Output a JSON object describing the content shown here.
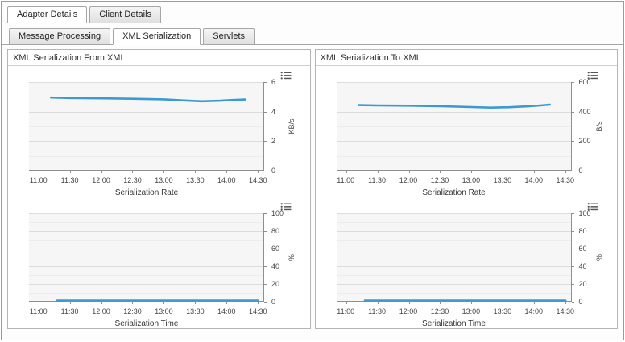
{
  "tabs_primary": [
    {
      "label": "Adapter Details",
      "active": true
    },
    {
      "label": "Client Details",
      "active": false
    }
  ],
  "tabs_secondary": [
    {
      "label": "Message Processing",
      "active": false
    },
    {
      "label": "XML Serialization",
      "active": true
    },
    {
      "label": "Servlets",
      "active": false
    }
  ],
  "panels": [
    {
      "title": "XML Serialization From XML"
    },
    {
      "title": "XML Serialization To XML"
    }
  ],
  "colors": {
    "line": "#3d9ad1",
    "grid_major": "#dcdcdc",
    "grid_minor": "#ececec",
    "axis": "#8f8f8f",
    "plot_bg": "#f6f6f6"
  },
  "chart_data": [
    {
      "type": "line",
      "panel": "XML Serialization From XML",
      "title": "Serialization Rate",
      "ylabel": "KB/s",
      "ylim": [
        0,
        6
      ],
      "yticks": [
        0,
        2,
        4,
        6
      ],
      "xlim": [
        10.85,
        14.6
      ],
      "xticks": [
        "11:00",
        "11:30",
        "12:00",
        "12:30",
        "13:00",
        "13:30",
        "14:00",
        "14:30"
      ],
      "x": [
        11.2,
        11.5,
        12.0,
        12.5,
        13.0,
        13.3,
        13.6,
        13.9,
        14.1,
        14.3
      ],
      "y": [
        4.95,
        4.92,
        4.9,
        4.87,
        4.83,
        4.76,
        4.7,
        4.74,
        4.79,
        4.82
      ]
    },
    {
      "type": "line",
      "panel": "XML Serialization From XML",
      "title": "Serialization Time",
      "ylabel": "%",
      "ylim": [
        0,
        100
      ],
      "yticks": [
        0,
        20,
        40,
        60,
        80,
        100
      ],
      "xlim": [
        10.85,
        14.6
      ],
      "xticks": [
        "11:00",
        "11:30",
        "12:00",
        "12:30",
        "13:00",
        "13:30",
        "14:00",
        "14:30"
      ],
      "x": [
        11.3,
        11.75,
        12.25,
        12.75,
        13.25,
        13.75,
        14.25,
        14.5
      ],
      "y": [
        1.3,
        1.3,
        1.3,
        1.3,
        1.3,
        1.3,
        1.3,
        1.3
      ]
    },
    {
      "type": "line",
      "panel": "XML Serialization To XML",
      "title": "Serialization Rate",
      "ylabel": "B/s",
      "ylim": [
        0,
        600
      ],
      "yticks": [
        0,
        200,
        400,
        600
      ],
      "xlim": [
        10.85,
        14.6
      ],
      "xticks": [
        "11:00",
        "11:30",
        "12:00",
        "12:30",
        "13:00",
        "13:30",
        "14:00",
        "14:30"
      ],
      "x": [
        11.2,
        11.5,
        12.0,
        12.5,
        13.0,
        13.3,
        13.6,
        13.9,
        14.1,
        14.25
      ],
      "y": [
        444,
        442,
        440,
        437,
        431,
        427,
        430,
        436,
        442,
        447
      ]
    },
    {
      "type": "line",
      "panel": "XML Serialization To XML",
      "title": "Serialization Time",
      "ylabel": "%",
      "ylim": [
        0,
        100
      ],
      "yticks": [
        0,
        20,
        40,
        60,
        80,
        100
      ],
      "xlim": [
        10.85,
        14.6
      ],
      "xticks": [
        "11:00",
        "11:30",
        "12:00",
        "12:30",
        "13:00",
        "13:30",
        "14:00",
        "14:30"
      ],
      "x": [
        11.3,
        11.75,
        12.25,
        12.75,
        13.25,
        13.75,
        14.25,
        14.5
      ],
      "y": [
        1.3,
        1.3,
        1.3,
        1.3,
        1.3,
        1.3,
        1.3,
        1.3
      ]
    }
  ]
}
